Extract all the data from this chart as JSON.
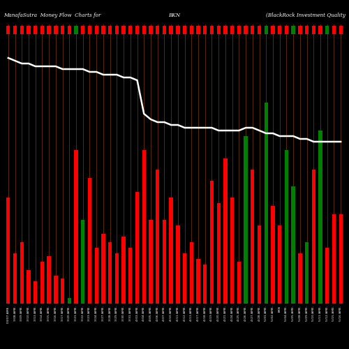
{
  "title_left": "ManafaSutra  Money Flow  Charts for",
  "title_mid": "BKN",
  "title_right": "(BlackRock Investment Quality",
  "background_color": "#000000",
  "grid_line_color": "#8B4500",
  "white_line_color": "#ffffff",
  "bar_colors": [
    "red",
    "red",
    "red",
    "red",
    "red",
    "red",
    "red",
    "red",
    "red",
    "green",
    "red",
    "green",
    "red",
    "red",
    "red",
    "red",
    "red",
    "red",
    "red",
    "red",
    "red",
    "red",
    "red",
    "red",
    "red",
    "red",
    "red",
    "red",
    "red",
    "red",
    "red",
    "red",
    "red",
    "red",
    "red",
    "green",
    "red",
    "red",
    "green",
    "red",
    "red",
    "green",
    "green",
    "red",
    "green",
    "red",
    "green",
    "red",
    "red",
    "red"
  ],
  "bar_heights": [
    38,
    18,
    22,
    12,
    8,
    15,
    17,
    10,
    9,
    2,
    55,
    30,
    45,
    20,
    25,
    22,
    18,
    24,
    20,
    40,
    55,
    30,
    48,
    30,
    38,
    28,
    18,
    22,
    16,
    14,
    44,
    36,
    52,
    38,
    15,
    60,
    48,
    28,
    72,
    35,
    28,
    55,
    42,
    18,
    22,
    48,
    62,
    20,
    32,
    32
  ],
  "white_line_y": [
    88,
    87,
    86,
    86,
    85,
    85,
    85,
    85,
    84,
    84,
    84,
    84,
    83,
    83,
    82,
    82,
    82,
    81,
    81,
    80,
    68,
    66,
    65,
    65,
    64,
    64,
    63,
    63,
    63,
    63,
    63,
    62,
    62,
    62,
    62,
    63,
    63,
    62,
    61,
    61,
    60,
    60,
    60,
    59,
    59,
    58,
    58,
    58,
    58,
    58
  ],
  "top_bar_colors": [
    "red",
    "red",
    "red",
    "red",
    "red",
    "red",
    "red",
    "red",
    "red",
    "red",
    "green",
    "red",
    "red",
    "red",
    "red",
    "red",
    "red",
    "red",
    "red",
    "red",
    "red",
    "red",
    "red",
    "red",
    "red",
    "red",
    "red",
    "red",
    "red",
    "red",
    "red",
    "red",
    "red",
    "red",
    "red",
    "red",
    "red",
    "red",
    "green",
    "red",
    "red",
    "red",
    "green",
    "red",
    "red",
    "red",
    "red",
    "green",
    "red",
    "red"
  ],
  "x_labels": [
    "03/07 AME.",
    "3/08 AME.",
    "3/09 AME.",
    "3/10 AME.",
    "3/13 AME.",
    "3/14 AME.",
    "3/15 AME.",
    "3/16 AME.",
    "3/17 AME.",
    "3/20 AME.",
    "3/21 AME.",
    "3/22 AME.",
    "3/23 AME.",
    "3/24 AME.",
    "3/27 AME.",
    "3/28 AME.",
    "3/29 AME.",
    "3/30 AME.",
    "3/31 AME.",
    "4/03 AME.",
    "4/04 AME.",
    "4/05 AME.",
    "4/06 AME.",
    "4/07 AME.",
    "4/10 AME.",
    "4/11 AME.",
    "4/12 AME.",
    "4/13 AME.",
    "4/17 AME.",
    "4/18 AME.",
    "4/19 AME.",
    "4/20 AME.",
    "4/21 AME.",
    "4/24 AME.",
    "4/25 AME.",
    "4/26 AME.",
    "4/27 AME.",
    "4/28 AME.",
    "5/01 AME.",
    "5/02 AME.",
    "BKN",
    "5/04 AME.",
    "5/05 AME.",
    "5/08 AME.",
    "5/09 AME.",
    "5/10 AME.",
    "5/11 AME.",
    "5/12 AME.",
    "5/15 AME.",
    "5/16 AME."
  ],
  "ylim_max": 100,
  "figsize": [
    5.0,
    5.0
  ],
  "dpi": 100
}
